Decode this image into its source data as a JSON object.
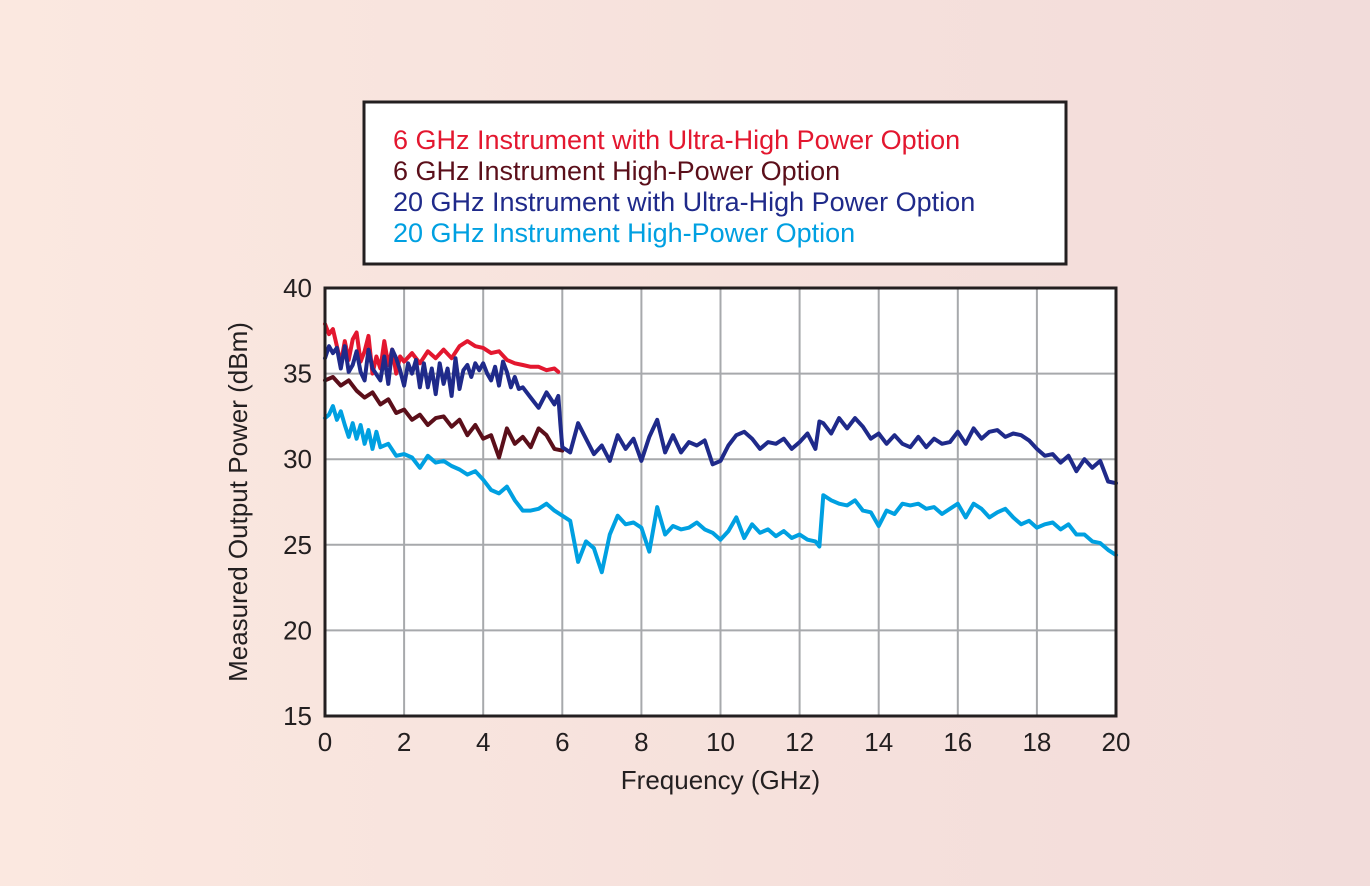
{
  "chart_data": {
    "type": "line",
    "xlabel": "Frequency (GHz)",
    "ylabel": "Measured Output Power (dBm)",
    "xlim": [
      0,
      20
    ],
    "ylim": [
      15,
      40
    ],
    "xticks": [
      0,
      2,
      4,
      6,
      8,
      10,
      12,
      14,
      16,
      18,
      20
    ],
    "yticks": [
      15,
      20,
      25,
      30,
      35,
      40
    ],
    "grid": true,
    "legend_position": "top-center",
    "series": [
      {
        "name": "6 GHz Instrument with Ultra-High Power Option",
        "color": "#e3172f",
        "x": [
          0,
          0.1,
          0.2,
          0.3,
          0.4,
          0.5,
          0.6,
          0.7,
          0.8,
          0.9,
          1.0,
          1.1,
          1.2,
          1.3,
          1.4,
          1.5,
          1.6,
          1.7,
          1.8,
          1.9,
          2.0,
          2.2,
          2.4,
          2.6,
          2.8,
          3.0,
          3.2,
          3.4,
          3.6,
          3.8,
          4.0,
          4.2,
          4.4,
          4.6,
          4.8,
          5.0,
          5.2,
          5.4,
          5.6,
          5.8,
          5.9
        ],
        "y": [
          37.9,
          37.3,
          37.6,
          36.6,
          35.6,
          36.9,
          35.8,
          37.0,
          37.4,
          35.7,
          36.3,
          37.2,
          35.0,
          36.0,
          35.3,
          36.9,
          35.5,
          36.4,
          35.0,
          36.0,
          35.7,
          36.2,
          35.6,
          36.3,
          35.9,
          36.4,
          35.9,
          36.6,
          36.9,
          36.6,
          36.5,
          36.2,
          36.3,
          35.8,
          35.6,
          35.5,
          35.4,
          35.4,
          35.2,
          35.3,
          35.1
        ]
      },
      {
        "name": "6 GHz Instrument High-Power Option",
        "color": "#5b0f1a",
        "x": [
          0,
          0.2,
          0.4,
          0.6,
          0.8,
          1.0,
          1.2,
          1.4,
          1.6,
          1.8,
          2.0,
          2.2,
          2.4,
          2.6,
          2.8,
          3.0,
          3.2,
          3.4,
          3.6,
          3.8,
          4.0,
          4.2,
          4.4,
          4.6,
          4.8,
          5.0,
          5.2,
          5.4,
          5.6,
          5.8,
          6.0
        ],
        "y": [
          34.6,
          34.8,
          34.3,
          34.6,
          34.0,
          33.6,
          33.9,
          33.2,
          33.5,
          32.7,
          32.9,
          32.3,
          32.6,
          32.0,
          32.4,
          32.5,
          31.9,
          32.3,
          31.4,
          32.0,
          31.2,
          31.4,
          30.1,
          31.8,
          30.9,
          31.3,
          30.7,
          31.8,
          31.4,
          30.6,
          30.5
        ]
      },
      {
        "name": "20 GHz Instrument with Ultra-High Power Option",
        "color": "#1f2a8a",
        "x": [
          0,
          0.1,
          0.2,
          0.3,
          0.4,
          0.5,
          0.6,
          0.7,
          0.8,
          0.9,
          1.0,
          1.1,
          1.2,
          1.4,
          1.5,
          1.6,
          1.7,
          1.8,
          1.9,
          2.0,
          2.1,
          2.2,
          2.3,
          2.4,
          2.5,
          2.6,
          2.7,
          2.8,
          2.9,
          3.0,
          3.1,
          3.2,
          3.3,
          3.4,
          3.5,
          3.6,
          3.7,
          3.8,
          3.9,
          4.0,
          4.1,
          4.2,
          4.3,
          4.4,
          4.5,
          4.6,
          4.7,
          4.8,
          4.9,
          5.0,
          5.2,
          5.4,
          5.6,
          5.8,
          5.9,
          5.95,
          6.0,
          6.2,
          6.4,
          6.6,
          6.8,
          7.0,
          7.2,
          7.4,
          7.6,
          7.8,
          8.0,
          8.2,
          8.4,
          8.6,
          8.8,
          9.0,
          9.2,
          9.4,
          9.6,
          9.8,
          10.0,
          10.2,
          10.4,
          10.6,
          10.8,
          11.0,
          11.2,
          11.4,
          11.6,
          11.8,
          12.0,
          12.2,
          12.4,
          12.5,
          12.6,
          12.8,
          13.0,
          13.2,
          13.4,
          13.6,
          13.8,
          14.0,
          14.2,
          14.4,
          14.6,
          14.8,
          15.0,
          15.2,
          15.4,
          15.6,
          15.8,
          16.0,
          16.2,
          16.4,
          16.6,
          16.8,
          17.0,
          17.2,
          17.4,
          17.6,
          17.8,
          18.0,
          18.2,
          18.4,
          18.6,
          18.8,
          19.0,
          19.2,
          19.4,
          19.6,
          19.8,
          20.0
        ],
        "y": [
          35.9,
          36.6,
          36.2,
          36.5,
          35.3,
          36.6,
          35.1,
          35.5,
          36.3,
          35.1,
          34.6,
          36.4,
          35.3,
          34.6,
          36.0,
          34.4,
          36.4,
          35.9,
          35.2,
          34.3,
          35.6,
          35.0,
          35.8,
          34.2,
          35.6,
          34.2,
          35.3,
          33.8,
          35.6,
          34.4,
          35.3,
          33.7,
          35.9,
          34.1,
          35.2,
          35.5,
          34.8,
          35.6,
          35.2,
          35.6,
          35.0,
          34.6,
          35.4,
          34.3,
          35.7,
          35.1,
          34.2,
          34.8,
          34.1,
          34.2,
          33.6,
          33.0,
          33.9,
          33.2,
          33.7,
          32.1,
          30.7,
          30.4,
          32.1,
          31.2,
          30.3,
          30.8,
          29.9,
          31.4,
          30.6,
          31.2,
          29.9,
          31.3,
          32.3,
          30.4,
          31.4,
          30.4,
          31.0,
          30.8,
          31.1,
          29.7,
          29.9,
          30.8,
          31.4,
          31.6,
          31.2,
          30.6,
          31.0,
          30.9,
          31.2,
          30.6,
          31.0,
          31.5,
          30.6,
          32.2,
          32.1,
          31.5,
          32.4,
          31.8,
          32.4,
          31.9,
          31.2,
          31.5,
          30.9,
          31.4,
          30.9,
          30.7,
          31.3,
          30.7,
          31.2,
          30.9,
          31.0,
          31.6,
          30.9,
          31.8,
          31.2,
          31.6,
          31.7,
          31.3,
          31.5,
          31.4,
          31.1,
          30.6,
          30.2,
          30.3,
          29.8,
          30.2,
          29.3,
          30.0,
          29.5,
          29.9,
          28.7,
          28.6
        ]
      },
      {
        "name": "20 GHz Instrument High-Power Option",
        "color": "#00a0e1",
        "x": [
          0,
          0.1,
          0.2,
          0.3,
          0.4,
          0.5,
          0.6,
          0.7,
          0.8,
          0.9,
          1.0,
          1.1,
          1.2,
          1.3,
          1.4,
          1.6,
          1.8,
          2.0,
          2.2,
          2.4,
          2.6,
          2.8,
          3.0,
          3.2,
          3.4,
          3.6,
          3.8,
          4.0,
          4.2,
          4.4,
          4.6,
          4.8,
          5.0,
          5.2,
          5.4,
          5.6,
          5.8,
          6.0,
          6.2,
          6.4,
          6.6,
          6.8,
          7.0,
          7.2,
          7.4,
          7.6,
          7.8,
          8.0,
          8.2,
          8.4,
          8.6,
          8.8,
          9.0,
          9.2,
          9.4,
          9.6,
          9.8,
          10.0,
          10.2,
          10.4,
          10.6,
          10.8,
          11.0,
          11.2,
          11.4,
          11.6,
          11.8,
          12.0,
          12.2,
          12.4,
          12.5,
          12.6,
          12.8,
          13.0,
          13.2,
          13.4,
          13.6,
          13.8,
          14.0,
          14.2,
          14.4,
          14.6,
          14.8,
          15.0,
          15.2,
          15.4,
          15.6,
          15.8,
          16.0,
          16.2,
          16.4,
          16.6,
          16.8,
          17.0,
          17.2,
          17.4,
          17.6,
          17.8,
          18.0,
          18.2,
          18.4,
          18.6,
          18.8,
          19.0,
          19.2,
          19.4,
          19.6,
          19.8,
          20.0
        ],
        "y": [
          32.4,
          32.6,
          33.1,
          32.3,
          32.8,
          32.0,
          31.3,
          32.1,
          31.2,
          32.0,
          30.9,
          31.7,
          30.6,
          31.6,
          30.7,
          30.9,
          30.2,
          30.3,
          30.1,
          29.5,
          30.2,
          29.8,
          29.9,
          29.6,
          29.4,
          29.1,
          29.3,
          28.8,
          28.2,
          28.0,
          28.4,
          27.6,
          27.0,
          27.0,
          27.1,
          27.4,
          27.0,
          26.7,
          26.4,
          24.0,
          25.2,
          24.8,
          23.4,
          25.6,
          26.7,
          26.2,
          26.3,
          26.0,
          24.6,
          27.2,
          25.6,
          26.1,
          25.9,
          26.0,
          26.3,
          25.9,
          25.7,
          25.3,
          25.8,
          26.6,
          25.4,
          26.2,
          25.7,
          25.9,
          25.5,
          25.8,
          25.4,
          25.6,
          25.3,
          25.2,
          24.9,
          27.9,
          27.6,
          27.4,
          27.3,
          27.6,
          27.0,
          26.9,
          26.1,
          27.0,
          26.8,
          27.4,
          27.3,
          27.4,
          27.1,
          27.2,
          26.8,
          27.1,
          27.4,
          26.6,
          27.4,
          27.1,
          26.6,
          26.9,
          27.1,
          26.6,
          26.2,
          26.4,
          26.0,
          26.2,
          26.3,
          25.9,
          26.2,
          25.6,
          25.6,
          25.2,
          25.1,
          24.7,
          24.4
        ]
      }
    ]
  }
}
